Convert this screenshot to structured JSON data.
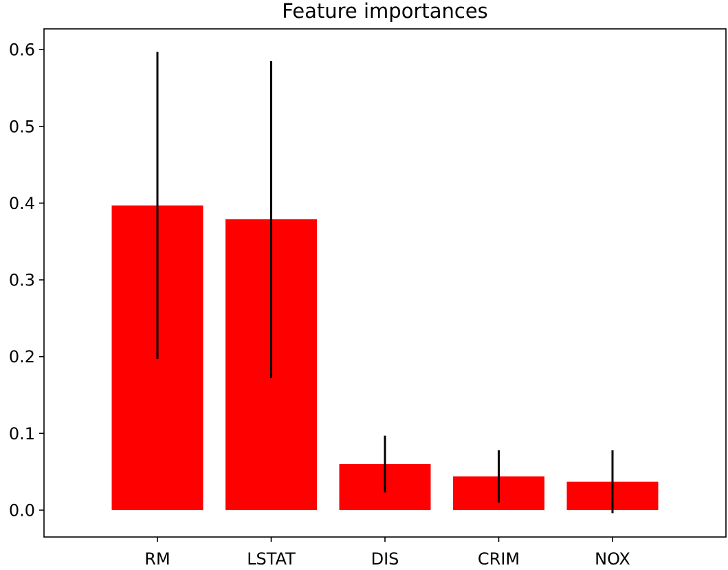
{
  "chart_data": {
    "type": "bar",
    "title": "Feature importances",
    "xlabel": "",
    "ylabel": "",
    "categories": [
      "RM",
      "LSTAT",
      "DIS",
      "CRIM",
      "NOX"
    ],
    "values": [
      0.397,
      0.379,
      0.06,
      0.044,
      0.037
    ],
    "error_low": [
      0.197,
      0.172,
      0.023,
      0.01,
      -0.004
    ],
    "error_high": [
      0.597,
      0.585,
      0.097,
      0.078,
      0.078
    ],
    "ylim": [
      -0.035,
      0.627
    ],
    "yticks": [
      0.0,
      0.1,
      0.2,
      0.3,
      0.4,
      0.5,
      0.6
    ],
    "ytick_labels": [
      "0.0",
      "0.1",
      "0.2",
      "0.3",
      "0.4",
      "0.5",
      "0.6"
    ],
    "grid": false,
    "bar_color": "#ff0000",
    "error_color": "#000000"
  }
}
